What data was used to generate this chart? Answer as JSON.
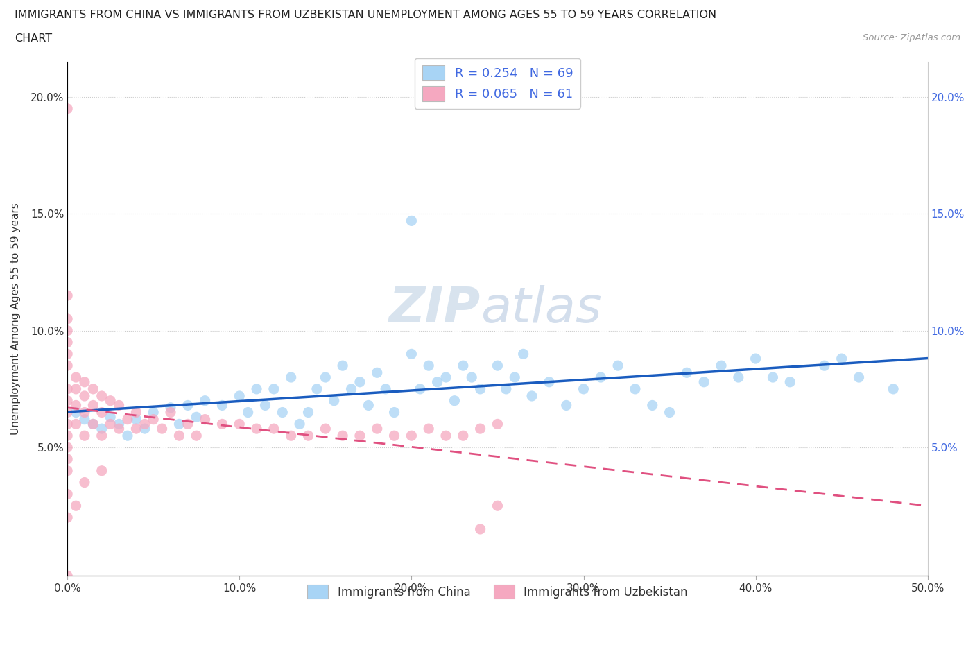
{
  "title_line1": "IMMIGRANTS FROM CHINA VS IMMIGRANTS FROM UZBEKISTAN UNEMPLOYMENT AMONG AGES 55 TO 59 YEARS CORRELATION",
  "title_line2": "CHART",
  "source_text": "Source: ZipAtlas.com",
  "ylabel": "Unemployment Among Ages 55 to 59 years",
  "xlim": [
    0.0,
    0.5
  ],
  "ylim": [
    -0.005,
    0.215
  ],
  "china_color": "#a8d4f5",
  "uzbekistan_color": "#f5a8c0",
  "china_line_color": "#1a5cbf",
  "uzbekistan_line_color": "#e05080",
  "china_R": 0.254,
  "china_N": 69,
  "uzbekistan_R": 0.065,
  "uzbekistan_N": 61,
  "watermark_text": "ZIPatlas",
  "background_color": "#ffffff",
  "grid_color": "#cccccc",
  "china_scatter_x": [
    0.005,
    0.01,
    0.015,
    0.02,
    0.025,
    0.03,
    0.035,
    0.04,
    0.045,
    0.05,
    0.06,
    0.065,
    0.07,
    0.075,
    0.08,
    0.09,
    0.1,
    0.105,
    0.11,
    0.115,
    0.12,
    0.125,
    0.13,
    0.135,
    0.14,
    0.145,
    0.15,
    0.155,
    0.16,
    0.165,
    0.17,
    0.175,
    0.18,
    0.185,
    0.19,
    0.2,
    0.205,
    0.21,
    0.215,
    0.22,
    0.225,
    0.23,
    0.235,
    0.24,
    0.25,
    0.255,
    0.26,
    0.265,
    0.27,
    0.28,
    0.29,
    0.3,
    0.31,
    0.32,
    0.33,
    0.34,
    0.35,
    0.36,
    0.37,
    0.38,
    0.39,
    0.4,
    0.41,
    0.42,
    0.44,
    0.45,
    0.46,
    0.48,
    0.2
  ],
  "china_scatter_y": [
    0.065,
    0.062,
    0.06,
    0.058,
    0.063,
    0.06,
    0.055,
    0.062,
    0.058,
    0.065,
    0.067,
    0.06,
    0.068,
    0.063,
    0.07,
    0.068,
    0.072,
    0.065,
    0.075,
    0.068,
    0.075,
    0.065,
    0.08,
    0.06,
    0.065,
    0.075,
    0.08,
    0.07,
    0.085,
    0.075,
    0.078,
    0.068,
    0.082,
    0.075,
    0.065,
    0.09,
    0.075,
    0.085,
    0.078,
    0.08,
    0.07,
    0.085,
    0.08,
    0.075,
    0.085,
    0.075,
    0.08,
    0.09,
    0.072,
    0.078,
    0.068,
    0.075,
    0.08,
    0.085,
    0.075,
    0.068,
    0.065,
    0.082,
    0.078,
    0.085,
    0.08,
    0.088,
    0.08,
    0.078,
    0.085,
    0.088,
    0.08,
    0.075,
    0.147
  ],
  "uzbekistan_scatter_x": [
    0.0,
    0.0,
    0.0,
    0.0,
    0.0,
    0.0,
    0.0,
    0.0,
    0.0,
    0.0,
    0.0,
    0.0,
    0.0,
    0.0,
    0.0,
    0.005,
    0.005,
    0.005,
    0.005,
    0.01,
    0.01,
    0.01,
    0.01,
    0.015,
    0.015,
    0.015,
    0.02,
    0.02,
    0.02,
    0.025,
    0.025,
    0.03,
    0.03,
    0.035,
    0.04,
    0.04,
    0.045,
    0.05,
    0.055,
    0.06,
    0.065,
    0.07,
    0.075,
    0.08,
    0.09,
    0.1,
    0.11,
    0.12,
    0.13,
    0.14,
    0.15,
    0.16,
    0.17,
    0.18,
    0.19,
    0.2,
    0.21,
    0.22,
    0.23,
    0.24,
    0.25
  ],
  "uzbekistan_scatter_y": [
    0.195,
    0.115,
    0.105,
    0.1,
    0.095,
    0.09,
    0.085,
    0.075,
    0.07,
    0.065,
    0.06,
    0.055,
    0.05,
    0.045,
    0.04,
    0.08,
    0.075,
    0.068,
    0.06,
    0.078,
    0.072,
    0.065,
    0.055,
    0.075,
    0.068,
    0.06,
    0.072,
    0.065,
    0.055,
    0.07,
    0.06,
    0.068,
    0.058,
    0.062,
    0.065,
    0.058,
    0.06,
    0.062,
    0.058,
    0.065,
    0.055,
    0.06,
    0.055,
    0.062,
    0.06,
    0.06,
    0.058,
    0.058,
    0.055,
    0.055,
    0.058,
    0.055,
    0.055,
    0.058,
    0.055,
    0.055,
    0.058,
    0.055,
    0.055,
    0.058,
    0.06
  ],
  "uzbekistan_extra_x": [
    0.0,
    0.0,
    0.0,
    0.005,
    0.01,
    0.02,
    0.24,
    0.25
  ],
  "uzbekistan_extra_y": [
    -0.005,
    0.03,
    0.02,
    0.025,
    0.035,
    0.04,
    0.015,
    0.025
  ]
}
